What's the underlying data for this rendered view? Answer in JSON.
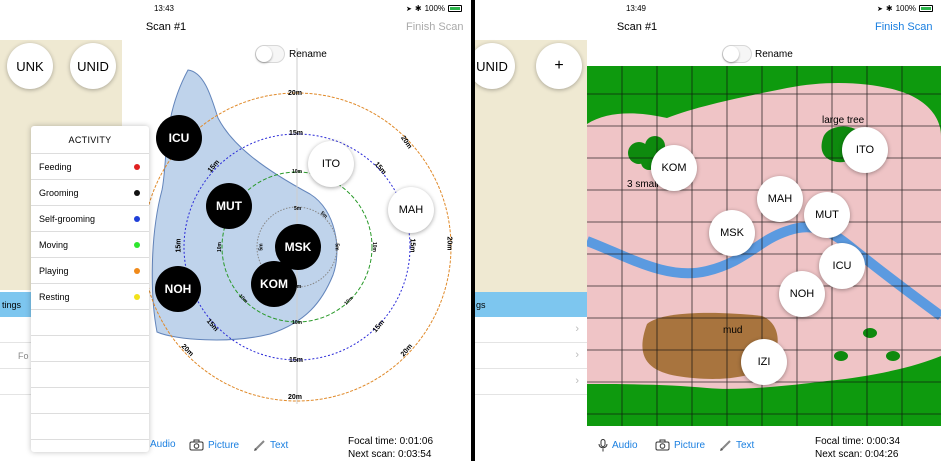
{
  "left": {
    "status": {
      "time": "13:43",
      "battery": "100%",
      "battery_level": 1.0
    },
    "nav": {
      "title": "Scan #1",
      "action": "Finish Scan"
    },
    "rename_label": "Rename",
    "buttons": {
      "unk": "UNK",
      "unid": "UNID"
    },
    "sidebar_header_partial": "tings",
    "sidebar_row_partial": "Fo",
    "activity": {
      "title": "ACTIVITY",
      "items": [
        {
          "label": "Feeding",
          "color": "#e02020"
        },
        {
          "label": "Grooming",
          "color": "#111111"
        },
        {
          "label": "Self-grooming",
          "color": "#1f3fd8"
        },
        {
          "label": "Moving",
          "color": "#2ee62e"
        },
        {
          "label": "Playing",
          "color": "#f08a1a"
        },
        {
          "label": "Resting",
          "color": "#f2e21a"
        }
      ]
    },
    "rings": {
      "outer_labels": [
        "20m",
        "20m",
        "20m",
        "20m",
        "20m",
        "20m",
        "20m"
      ],
      "r15_labels": [
        "15m",
        "15m",
        "15m",
        "15m",
        "15m",
        "15m",
        "15m",
        "15m"
      ],
      "r10_labels": [
        "10m",
        "10m",
        "10m",
        "10m",
        "10m",
        "10m"
      ],
      "r5_labels": [
        "5m",
        "5m",
        "5m",
        "5m",
        "5m"
      ],
      "colors": {
        "r20": "#e08a2a",
        "r15": "#2a2ad8",
        "r10": "#2a9a2a",
        "r5": "#888888"
      }
    },
    "individuals_dark": [
      "ICU",
      "MUT",
      "MSK",
      "KOM",
      "NOH"
    ],
    "individuals_light": [
      "ITO",
      "MAH"
    ],
    "toolbar": {
      "audio": "Audio",
      "picture": "Picture",
      "text": "Text"
    },
    "timers": {
      "focal": "Focal time: 0:01:06",
      "next": "Next scan: 0:03:54"
    }
  },
  "right": {
    "status": {
      "time": "13:49",
      "battery": "100%",
      "battery_level": 1.0
    },
    "nav": {
      "title": "Scan #1",
      "action": "Finish Scan"
    },
    "rename_label": "Rename",
    "buttons": {
      "unid": "UNID",
      "add": "+"
    },
    "sidebar_header_partial": "gs",
    "map_labels": {
      "large_tree": "large tree",
      "small_trees": "3 small trees",
      "mud": "mud"
    },
    "map_colors": {
      "grass": "#0e9a0e",
      "ground": "#efc4c6",
      "river": "#5b9ae0",
      "mud": "#a8743e",
      "tree": "#0e8a0e"
    },
    "individuals": [
      "KOM",
      "ITO",
      "MAH",
      "MUT",
      "MSK",
      "ICU",
      "NOH",
      "IZI"
    ],
    "toolbar": {
      "audio": "Audio",
      "picture": "Picture",
      "text": "Text"
    },
    "timers": {
      "focal": "Focal time: 0:00:34",
      "next": "Next scan: 0:04:26"
    }
  }
}
